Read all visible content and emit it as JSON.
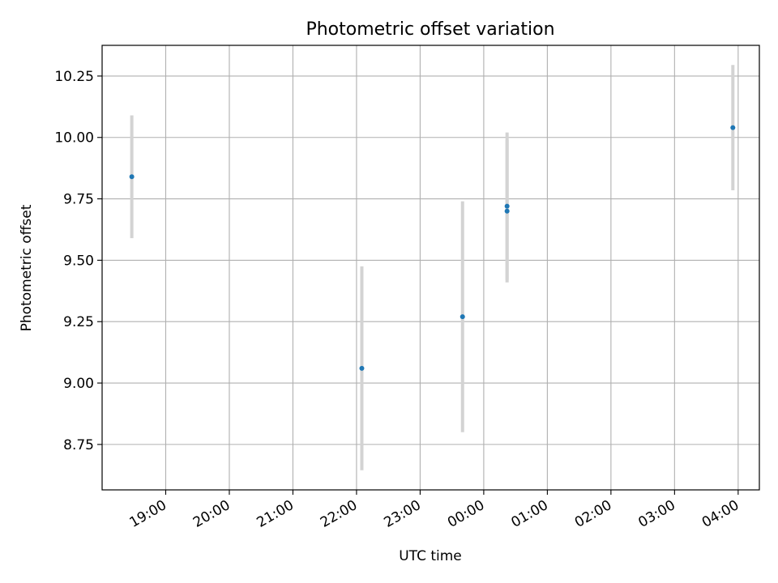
{
  "chart_data": {
    "type": "scatter",
    "title": "Photometric offset variation",
    "xlabel": "UTC time",
    "ylabel": "Photometric offset",
    "grid": true,
    "x_axis_type": "time",
    "xlim": [
      "18:00",
      "04:20"
    ],
    "ylim": [
      8.565,
      10.375
    ],
    "x_ticks": [
      "19:00",
      "20:00",
      "21:00",
      "22:00",
      "23:00",
      "00:00",
      "01:00",
      "02:00",
      "03:00",
      "04:00"
    ],
    "y_ticks": [
      "8.75",
      "9.00",
      "9.25",
      "9.50",
      "9.75",
      "10.00",
      "10.25"
    ],
    "points": [
      {
        "x": "18:28",
        "y": 9.84,
        "err": 0.25
      },
      {
        "x": "22:05",
        "y": 9.06,
        "err": 0.415
      },
      {
        "x": "23:40",
        "y": 9.27,
        "err": 0.47
      },
      {
        "x": "00:22",
        "y": 9.7,
        "err": 0.29
      },
      {
        "x": "00:22",
        "y": 9.72,
        "err": 0.3
      },
      {
        "x": "03:55",
        "y": 10.04,
        "err": 0.255
      }
    ],
    "colors": {
      "point": "#1f77b4",
      "errorbar": "#d3d3d3",
      "grid": "#b0b0b0"
    }
  }
}
